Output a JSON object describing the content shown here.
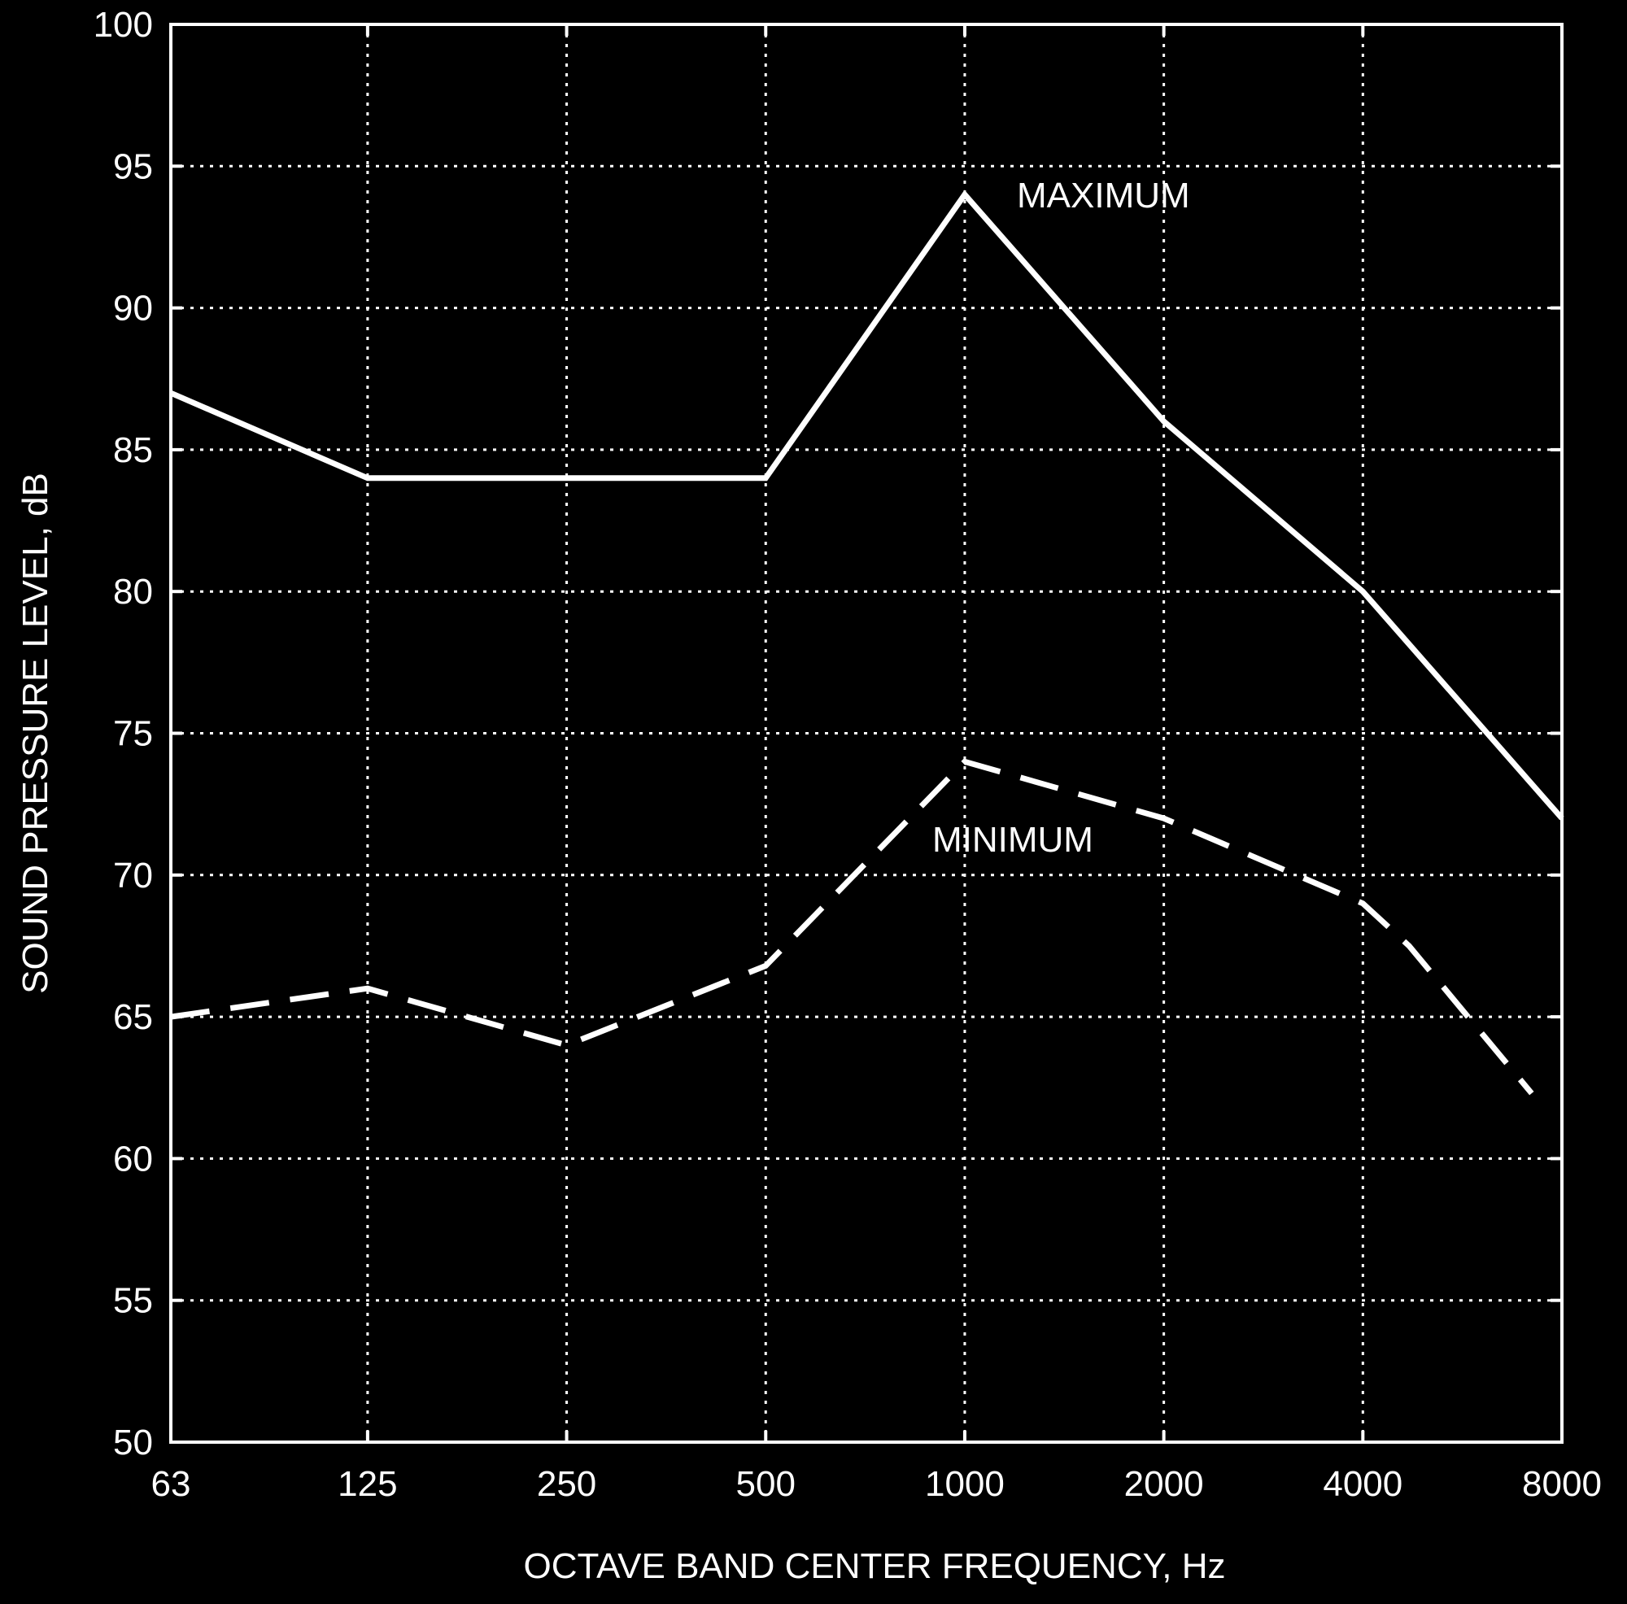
{
  "chart_data": {
    "type": "line",
    "categories": [
      "63",
      "125",
      "250",
      "500",
      "1000",
      "2000",
      "4000",
      "8000"
    ],
    "x": [
      63,
      125,
      250,
      500,
      1000,
      2000,
      4000,
      8000
    ],
    "xscale": "log2 (octave bands)",
    "series": [
      {
        "name": "MAXIMUM",
        "style": "solid",
        "points": [
          [
            63,
            87
          ],
          [
            125,
            84
          ],
          [
            500,
            84
          ],
          [
            1000,
            94
          ],
          [
            2000,
            86
          ],
          [
            4000,
            80
          ],
          [
            8000,
            72
          ]
        ]
      },
      {
        "name": "MINIMUM",
        "style": "dashed",
        "points": [
          [
            63,
            65
          ],
          [
            125,
            66
          ],
          [
            250,
            64
          ],
          [
            500,
            66.8
          ],
          [
            1000,
            74
          ],
          [
            2000,
            72
          ],
          [
            4000,
            69
          ],
          [
            4700,
            67.5
          ],
          [
            7200,
            62.3
          ]
        ]
      }
    ],
    "title": "",
    "xlabel": "OCTAVE BAND CENTER FREQUENCY, Hz",
    "ylabel": "SOUND PRESSURE LEVEL, dB",
    "ylim": [
      50,
      100
    ],
    "yticks": [
      50,
      55,
      60,
      65,
      70,
      75,
      80,
      85,
      90,
      95,
      100
    ],
    "grid": true,
    "colors": {
      "background": "#000000",
      "foreground": "#ffffff"
    }
  }
}
